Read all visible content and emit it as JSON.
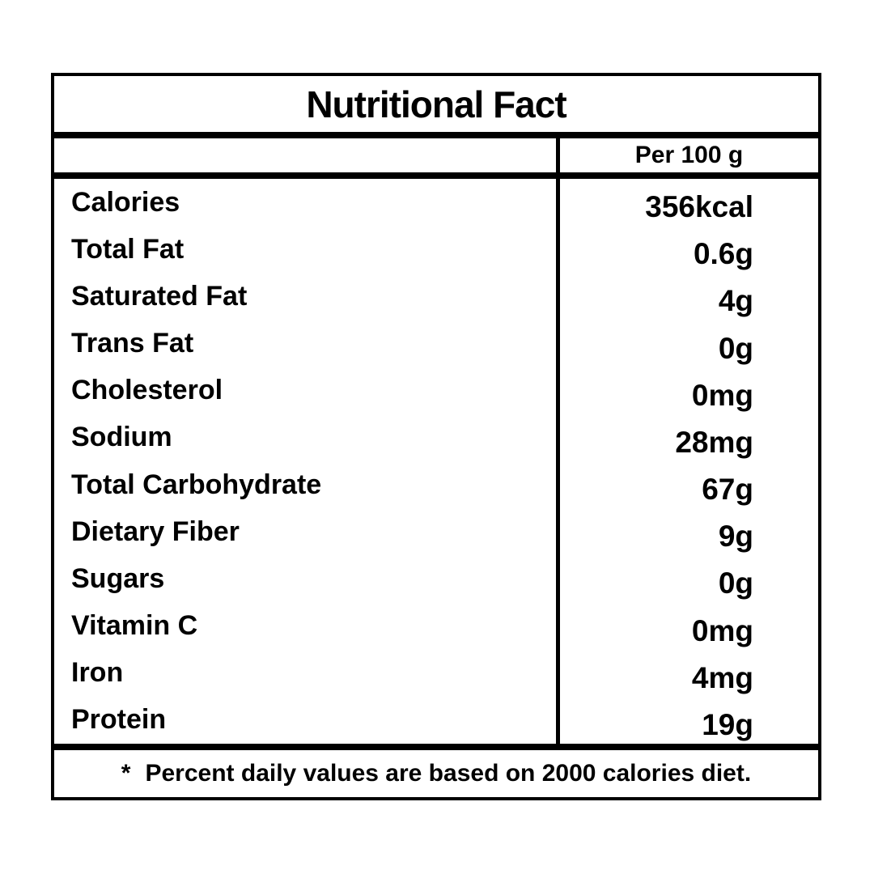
{
  "title": "Nutritional Fact",
  "header": {
    "serving_label": "Per 100 g"
  },
  "rows": [
    {
      "label": "Calories",
      "value": "356kcal"
    },
    {
      "label": "Total Fat",
      "value": "0.6g"
    },
    {
      "label": "Saturated Fat",
      "value": "4g"
    },
    {
      "label": "Trans Fat",
      "value": "0g"
    },
    {
      "label": "Cholesterol",
      "value": "0mg"
    },
    {
      "label": "Sodium",
      "value": "28mg"
    },
    {
      "label": "Total Carbohydrate",
      "value": "67g"
    },
    {
      "label": "Dietary Fiber",
      "value": "9g"
    },
    {
      "label": "Sugars",
      "value": "0g"
    },
    {
      "label": "Vitamin C",
      "value": "0mg"
    },
    {
      "label": "Iron",
      "value": "4mg"
    },
    {
      "label": "Protein",
      "value": "19g"
    }
  ],
  "footnote": {
    "marker": "*",
    "text": "Percent daily values are based on 2000 calories diet."
  },
  "colors": {
    "border": "#000000",
    "text": "#000000",
    "background": "#ffffff"
  }
}
